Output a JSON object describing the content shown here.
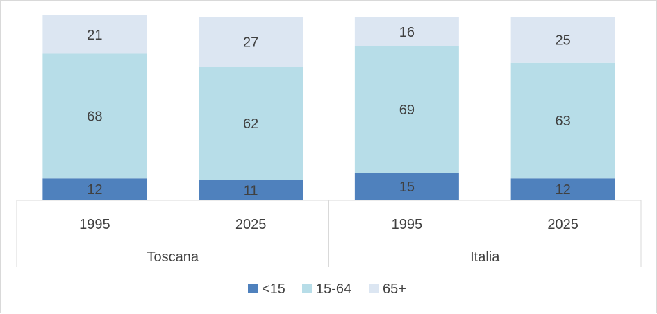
{
  "chart_data": {
    "type": "bar",
    "stacked": true,
    "title": "",
    "xlabel": "",
    "ylabel": "",
    "groups": [
      "Toscana",
      "Italia"
    ],
    "categories": [
      "1995",
      "2025",
      "1995",
      "2025"
    ],
    "category_group": [
      0,
      0,
      1,
      1
    ],
    "series": [
      {
        "name": "<15",
        "values": [
          12,
          11,
          15,
          12
        ],
        "color": "#4f81bd"
      },
      {
        "name": "15-64",
        "values": [
          68,
          62,
          69,
          63
        ],
        "color": "#b7dde8"
      },
      {
        "name": "65+",
        "values": [
          21,
          27,
          16,
          25
        ],
        "color": "#dce6f2"
      }
    ],
    "ylim": [
      0,
      101
    ],
    "data_labels": true,
    "legend_position": "bottom",
    "grid": false
  }
}
